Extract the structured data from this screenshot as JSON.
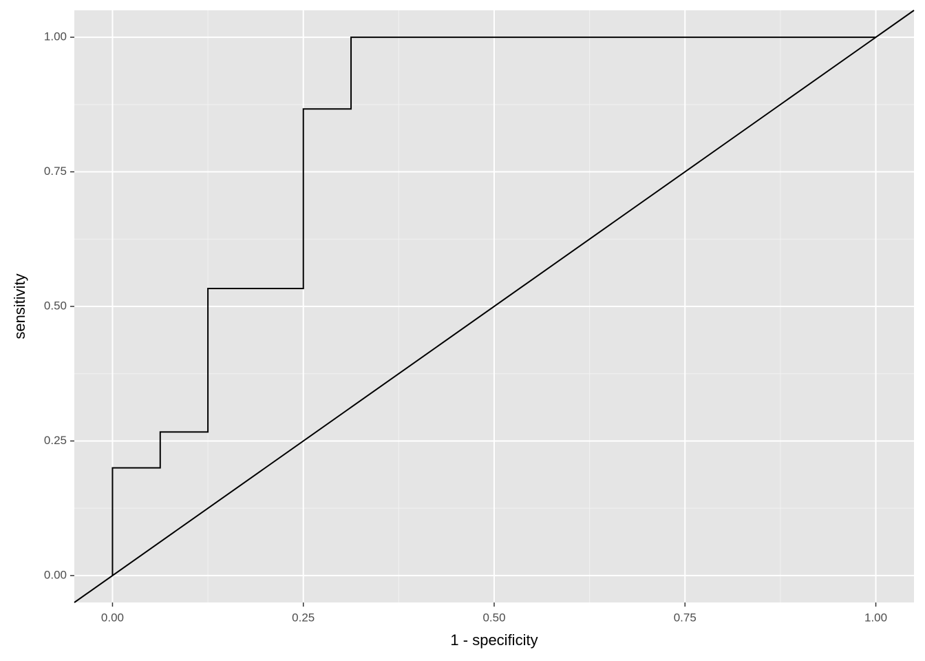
{
  "chart_data": {
    "type": "step",
    "x_label": "1 - specificity",
    "y_label": "sensitivity",
    "series": [
      {
        "color": "#000000",
        "x": [
          0,
          0,
          0.0625,
          0.0625,
          0.125,
          0.125,
          0.25,
          0.25,
          0.3125,
          0.3125,
          1
        ],
        "values": [
          0,
          0.2,
          0.2,
          0.2667,
          0.2667,
          0.5333,
          0.5333,
          0.8667,
          0.8667,
          1,
          1
        ]
      }
    ],
    "reference_line": {
      "intercept": 0,
      "slope": 1,
      "color": "#000000"
    },
    "xlim": [
      -0.05,
      1.05
    ],
    "ylim": [
      -0.05,
      1.05
    ],
    "xticks": [
      {
        "value": 0,
        "label": "0.00"
      },
      {
        "value": 0.25,
        "label": "0.25"
      },
      {
        "value": 0.5,
        "label": "0.50"
      },
      {
        "value": 0.75,
        "label": "0.75"
      },
      {
        "value": 1,
        "label": "1.00"
      }
    ],
    "yticks": [
      {
        "value": 0,
        "label": "0.00"
      },
      {
        "value": 0.25,
        "label": "0.25"
      },
      {
        "value": 0.5,
        "label": "0.50"
      },
      {
        "value": 0.75,
        "label": "0.75"
      },
      {
        "value": 1,
        "label": "1.00"
      }
    ],
    "minor_xticks": [
      0.125,
      0.375,
      0.625,
      0.875
    ],
    "minor_yticks": [
      0.125,
      0.375,
      0.625,
      0.875
    ],
    "grid": true
  }
}
